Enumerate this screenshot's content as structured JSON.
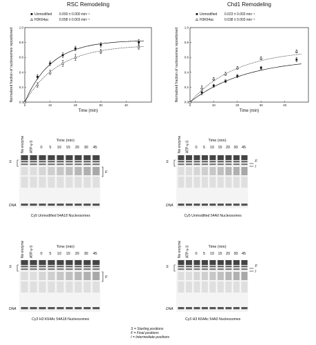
{
  "chart_data": [
    {
      "type": "scatter",
      "title": "RSC Remodeling",
      "xlabel": "Time (min)",
      "ylabel": "Normalized fraction of nucleosomes repositioned",
      "xlim": [
        0,
        50
      ],
      "ylim": [
        0,
        1.0
      ],
      "xticks": [
        "0",
        "10",
        "20",
        "30",
        "40"
      ],
      "yticks": [
        "0.0",
        "0.2",
        "0.4",
        "0.6",
        "0.8",
        "1.0"
      ],
      "series": [
        {
          "name": "Unmodified",
          "rate": "0.093 ± 0.000 min⁻¹",
          "marker": "filled-square",
          "line": "solid",
          "x": [
            0,
            5,
            10,
            15,
            20,
            30,
            45
          ],
          "y": [
            0,
            0.34,
            0.52,
            0.63,
            0.72,
            0.77,
            0.8
          ],
          "err": [
            0,
            0.03,
            0.03,
            0.03,
            0.03,
            0.03,
            0.04
          ]
        },
        {
          "name": "H3K64ac",
          "rate": "0.058 ± 0.003 min⁻¹",
          "marker": "open-triangle",
          "line": "dotted",
          "x": [
            0,
            5,
            10,
            15,
            20,
            30,
            45
          ],
          "y": [
            0,
            0.23,
            0.4,
            0.52,
            0.6,
            0.68,
            0.74
          ],
          "err": [
            0,
            0.03,
            0.03,
            0.04,
            0.04,
            0.03,
            0.03
          ]
        }
      ]
    },
    {
      "type": "scatter",
      "title": "Chd1 Remodeling",
      "xlabel": "Time (min)",
      "ylabel": "Normalized fraction of nucleosomes repositioned",
      "xlim": [
        0,
        50
      ],
      "ylim": [
        0,
        1.0
      ],
      "xticks": [
        "0",
        "10",
        "20",
        "30",
        "40"
      ],
      "yticks": [
        "0.0",
        "0.2",
        "0.4",
        "0.6",
        "0.8",
        "1.0"
      ],
      "series": [
        {
          "name": "Unmodified",
          "rate": "0.023 ± 0.003 min⁻¹",
          "marker": "filled-square",
          "line": "solid",
          "x": [
            0,
            5,
            10,
            15,
            20,
            30,
            45
          ],
          "y": [
            0,
            0.13,
            0.22,
            0.28,
            0.35,
            0.46,
            0.57
          ],
          "err": [
            0,
            0.03,
            0.02,
            0.02,
            0.02,
            0.02,
            0.03
          ]
        },
        {
          "name": "H3K64ac",
          "rate": "0.038 ± 0.003 min⁻¹",
          "marker": "open-triangle",
          "line": "dotted",
          "x": [
            0,
            5,
            10,
            15,
            20,
            30,
            45
          ],
          "y": [
            0,
            0.19,
            0.31,
            0.38,
            0.46,
            0.59,
            0.68
          ],
          "err": [
            0,
            0.03,
            0.02,
            0.02,
            0.02,
            0.02,
            0.02
          ]
        }
      ]
    }
  ],
  "gels": [
    {
      "caption": "Cy5 Unmodified 54A18 Nucleosomes",
      "no_enzyme": "No enzyme",
      "atp": "ATP-γ-S",
      "time_label": "Time (min)",
      "times": [
        "0",
        "5",
        "10",
        "15",
        "20",
        "30",
        "45"
      ],
      "S": "S",
      "F": "F",
      "I": "",
      "dna": "DNA"
    },
    {
      "caption": "Cy5 Unmodified 54A0 Nucleosomes",
      "no_enzyme": "No enzyme",
      "atp": "ATP-γ-S",
      "time_label": "Time (min)",
      "times": [
        "0",
        "5",
        "10",
        "15",
        "20",
        "30",
        "45"
      ],
      "S": "S",
      "F": "F",
      "I": "I",
      "dna": "DNA"
    },
    {
      "caption": "Cy3 H3 K64Ac 54A18 Nucleosomes",
      "no_enzyme": "No enzyme",
      "atp": "ATP-γ-S",
      "time_label": "Time (min)",
      "times": [
        "0",
        "5",
        "10",
        "15",
        "20",
        "30",
        "45"
      ],
      "S": "S",
      "F": "F",
      "I": "",
      "dna": "DNA"
    },
    {
      "caption": "Cy3 H3 K64Ac 54A0 Nucleosomes",
      "no_enzyme": "No enzyme",
      "atp": "ATP-γ-S",
      "time_label": "Time (min)",
      "times": [
        "0",
        "5",
        "10",
        "15",
        "20",
        "30",
        "45"
      ],
      "S": "S",
      "F": "F",
      "I": "I",
      "dna": "DNA"
    }
  ],
  "key": {
    "s": "S = Starting positions",
    "f": "F = Final positions",
    "i": "I = Intermediate positions"
  }
}
